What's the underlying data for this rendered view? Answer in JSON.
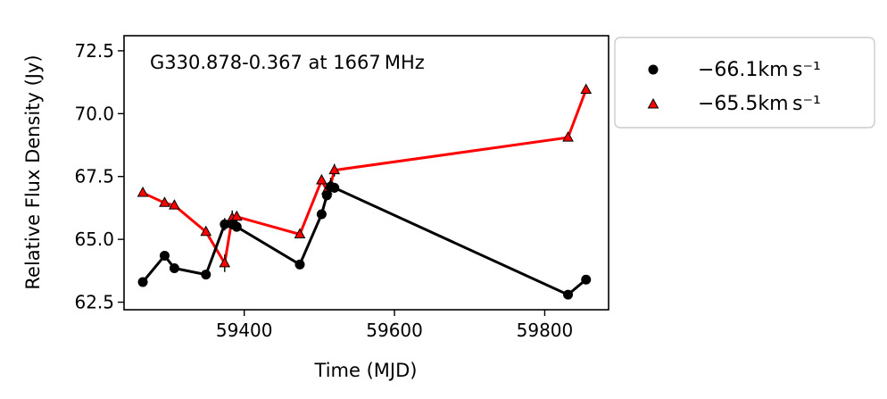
{
  "chart_data": {
    "type": "line",
    "annotation": "G330.878-0.367 at 1667 MHz",
    "xlabel": "Time (MJD)",
    "ylabel": "Relative Flux Density (Jy)",
    "xlim": [
      59240,
      59885
    ],
    "ylim": [
      62.2,
      73.1
    ],
    "xticks": [
      59400,
      59600,
      59800
    ],
    "yticks": [
      62.5,
      65.0,
      67.5,
      70.0,
      72.5
    ],
    "xtick_labels": [
      "59400",
      "59600",
      "59800"
    ],
    "ytick_labels": [
      "62.5",
      "65.0",
      "67.5",
      "70.0",
      "72.5"
    ],
    "legend_position": "outside-right",
    "series": [
      {
        "name": "−66.1km s⁻¹",
        "marker": "circle",
        "line_color": "#000000",
        "marker_color": "#000000",
        "x": [
          59265,
          59294,
          59307,
          59349,
          59374,
          59384,
          59390,
          59474,
          59503,
          59510,
          59515,
          59520,
          59831,
          59855
        ],
        "y": [
          63.3,
          64.35,
          63.85,
          63.6,
          65.6,
          65.6,
          65.5,
          64.0,
          66.0,
          66.75,
          67.1,
          67.05,
          62.8,
          63.4
        ],
        "yerr": [
          0.1,
          0.1,
          0.1,
          0.1,
          0.25,
          0.2,
          0.2,
          0.1,
          0.15,
          0.2,
          0.25,
          0.2,
          0.1,
          0.1
        ]
      },
      {
        "name": "−65.5km s⁻¹",
        "marker": "triangle",
        "line_color": "#ff0000",
        "marker_color": "#ff0000",
        "x": [
          59265,
          59294,
          59307,
          59349,
          59374,
          59384,
          59390,
          59474,
          59503,
          59510,
          59515,
          59520,
          59831,
          59855
        ],
        "y": [
          66.85,
          66.45,
          66.35,
          65.3,
          64.05,
          65.85,
          65.9,
          65.2,
          67.35,
          66.95,
          67.15,
          67.75,
          69.05,
          70.95
        ],
        "yerr": [
          0.1,
          0.1,
          0.1,
          0.1,
          0.35,
          0.3,
          0.2,
          0.1,
          0.15,
          0.2,
          0.3,
          0.25,
          0.15,
          0.15
        ]
      }
    ]
  }
}
